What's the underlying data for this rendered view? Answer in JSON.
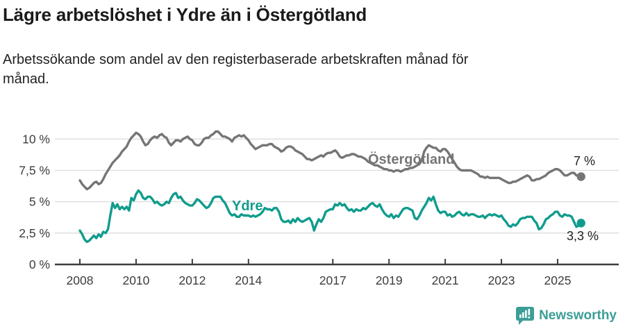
{
  "header": {
    "title": "Lägre arbetslöshet i Ydre än i Östergötland",
    "subtitle": "Arbetssökande som andel av den registerbaserade arbetskraften månad för månad."
  },
  "chart_data": {
    "type": "line",
    "title": "Lägre arbetslöshet i Ydre än i Östergötland",
    "x_unit": "month",
    "x_start": "2008-01",
    "x_end": "2025-11",
    "ylim": [
      0,
      10.8
    ],
    "grid": true,
    "y_axis": {
      "ticks": [
        0,
        2.5,
        5,
        7.5,
        10
      ],
      "labels": [
        "0 %",
        "2,5 %",
        "5 %",
        "7,5 %",
        "10 %"
      ]
    },
    "x_axis": {
      "tick_years": [
        2008,
        2010,
        2012,
        2014,
        2017,
        2019,
        2021,
        2023,
        2025
      ],
      "labels": [
        "2008",
        "2010",
        "2012",
        "2014",
        "2017",
        "2019",
        "2021",
        "2023",
        "2025"
      ]
    },
    "colors": {
      "ostergotland": "#757575",
      "ydre": "#109c8c",
      "axis": "#3d3d3d",
      "gridline": "#dcdcdc",
      "end_label": "#222222"
    },
    "series": [
      {
        "name": "Östergötland",
        "color": "#757575",
        "end_label": "7 %",
        "end_value": 7.0,
        "values": [
          6.7,
          6.4,
          6.2,
          6.0,
          6.1,
          6.3,
          6.5,
          6.6,
          6.4,
          6.5,
          6.8,
          7.2,
          7.5,
          7.8,
          8.1,
          8.3,
          8.5,
          8.7,
          9.0,
          9.2,
          9.4,
          9.8,
          10.1,
          10.3,
          10.5,
          10.4,
          10.2,
          9.8,
          9.5,
          9.6,
          9.9,
          10.1,
          10.2,
          10.1,
          10.3,
          10.4,
          10.2,
          10.1,
          9.7,
          9.5,
          9.7,
          9.9,
          9.9,
          9.8,
          10.0,
          10.1,
          10.2,
          10.0,
          9.9,
          9.6,
          9.5,
          9.5,
          9.7,
          10.0,
          10.1,
          10.1,
          10.3,
          10.4,
          10.6,
          10.6,
          10.4,
          10.2,
          10.2,
          10.1,
          10.0,
          9.8,
          10.1,
          10.2,
          10.3,
          10.2,
          10.3,
          10.1,
          9.9,
          9.6,
          9.4,
          9.2,
          9.3,
          9.4,
          9.5,
          9.5,
          9.5,
          9.6,
          9.6,
          9.4,
          9.3,
          9.2,
          9.0,
          9.1,
          9.3,
          9.4,
          9.4,
          9.3,
          9.1,
          9.0,
          8.9,
          8.8,
          8.6,
          8.4,
          8.4,
          8.3,
          8.4,
          8.5,
          8.6,
          8.7,
          8.6,
          8.8,
          8.9,
          8.9,
          9.0,
          9.1,
          8.9,
          8.6,
          8.5,
          8.6,
          8.7,
          8.7,
          8.8,
          8.8,
          8.7,
          8.6,
          8.6,
          8.5,
          8.4,
          8.2,
          8.1,
          8.0,
          7.9,
          7.9,
          7.8,
          7.7,
          7.6,
          7.6,
          7.5,
          7.5,
          7.4,
          7.5,
          7.5,
          7.4,
          7.5,
          7.6,
          7.6,
          7.7,
          7.7,
          7.8,
          7.9,
          8.0,
          8.3,
          9.0,
          9.3,
          9.5,
          9.4,
          9.3,
          9.3,
          9.1,
          9.0,
          9.2,
          9.2,
          9.0,
          8.7,
          8.4,
          8.1,
          7.8,
          7.6,
          7.5,
          7.5,
          7.5,
          7.5,
          7.5,
          7.4,
          7.3,
          7.2,
          7.0,
          7.0,
          6.9,
          7.0,
          6.9,
          6.9,
          6.9,
          6.9,
          6.9,
          6.8,
          6.7,
          6.6,
          6.5,
          6.5,
          6.6,
          6.6,
          6.7,
          6.8,
          6.9,
          7.0,
          7.1,
          7.0,
          6.7,
          6.7,
          6.8,
          6.8,
          6.9,
          7.0,
          7.1,
          7.3,
          7.4,
          7.5,
          7.6,
          7.6,
          7.5,
          7.3,
          7.1,
          7.1,
          7.2,
          7.3,
          7.3,
          7.1,
          7.1,
          7.0
        ]
      },
      {
        "name": "Ydre",
        "color": "#109c8c",
        "end_label": "3,3 %",
        "end_value": 3.3,
        "values": [
          2.7,
          2.4,
          2.0,
          1.8,
          1.9,
          2.1,
          2.3,
          2.1,
          2.4,
          2.2,
          2.6,
          2.5,
          2.8,
          3.9,
          4.9,
          4.5,
          4.8,
          4.4,
          4.6,
          4.4,
          4.6,
          4.3,
          5.3,
          5.1,
          5.6,
          5.9,
          5.7,
          5.3,
          5.2,
          5.4,
          5.4,
          5.2,
          4.9,
          5.0,
          4.8,
          4.7,
          4.8,
          5.0,
          4.9,
          5.3,
          5.6,
          5.7,
          5.3,
          5.4,
          5.1,
          4.9,
          4.8,
          4.7,
          4.7,
          4.9,
          5.2,
          5.1,
          4.9,
          4.7,
          4.5,
          4.6,
          4.9,
          5.3,
          5.4,
          5.4,
          5.4,
          5.1,
          4.9,
          4.5,
          4.1,
          3.9,
          4.0,
          3.8,
          3.8,
          4.0,
          3.9,
          3.9,
          3.9,
          3.8,
          3.9,
          3.8,
          3.9,
          4.0,
          4.2,
          4.5,
          4.4,
          4.4,
          4.3,
          4.5,
          4.5,
          4.2,
          3.6,
          3.4,
          3.4,
          3.5,
          3.3,
          3.6,
          3.4,
          3.7,
          3.5,
          3.4,
          3.5,
          3.6,
          3.7,
          3.4,
          2.7,
          3.2,
          3.6,
          3.4,
          3.7,
          4.2,
          4.3,
          4.4,
          4.4,
          4.8,
          4.7,
          4.9,
          4.7,
          4.8,
          4.5,
          4.3,
          4.4,
          4.2,
          4.4,
          4.3,
          4.3,
          4.5,
          4.4,
          4.6,
          4.8,
          4.9,
          4.7,
          4.6,
          4.8,
          4.4,
          4.1,
          3.9,
          3.8,
          4.0,
          3.7,
          3.9,
          3.8,
          4.1,
          4.4,
          4.5,
          4.5,
          4.4,
          4.3,
          3.7,
          3.6,
          3.9,
          4.3,
          4.6,
          4.9,
          5.3,
          5.1,
          5.4,
          4.8,
          4.3,
          4.1,
          4.2,
          4.2,
          3.9,
          4.0,
          3.8,
          3.9,
          4.1,
          4.2,
          4.0,
          3.9,
          4.1,
          3.9,
          4.0,
          4.0,
          3.9,
          3.8,
          3.8,
          3.9,
          3.7,
          3.9,
          4.0,
          3.9,
          4.0,
          3.9,
          3.8,
          3.9,
          3.6,
          3.4,
          3.1,
          3.0,
          3.2,
          3.1,
          3.3,
          3.6,
          3.7,
          3.7,
          3.8,
          3.8,
          3.8,
          3.5,
          3.3,
          2.8,
          2.9,
          3.2,
          3.6,
          3.7,
          3.9,
          4.0,
          4.2,
          4.2,
          3.9,
          3.8,
          4.0,
          3.9,
          3.9,
          3.8,
          3.4,
          3.0,
          3.1,
          3.3
        ]
      }
    ]
  },
  "footer": {
    "brand": "Newsworthy",
    "brand_color": "#3b9e96"
  }
}
